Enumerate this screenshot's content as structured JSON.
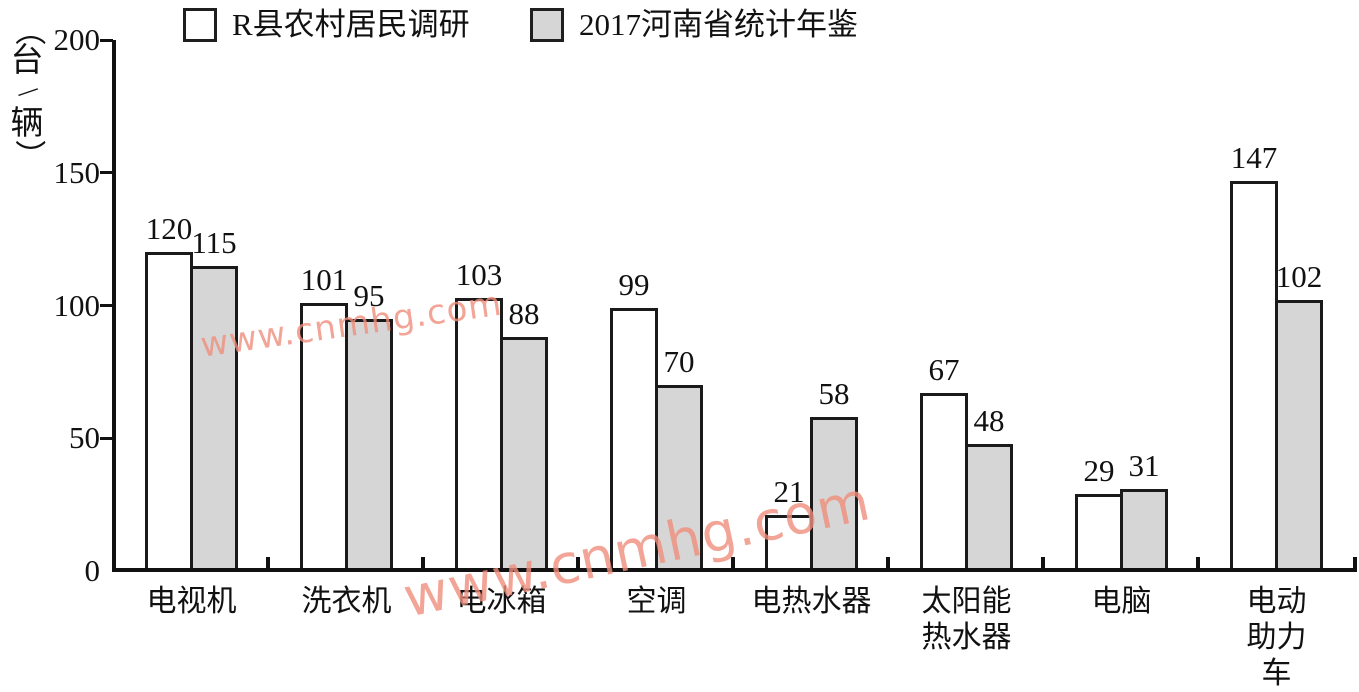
{
  "legend": {
    "items": [
      {
        "label": "R县农村居民调研",
        "swatch": "white"
      },
      {
        "label": "2017河南省统计年鉴",
        "swatch": "gray"
      }
    ]
  },
  "watermarks": [
    "www.cnmhg.com",
    "www.cnmhg.com"
  ],
  "colors": {
    "bar_white": "#ffffff",
    "bar_gray": "#d6d6d6",
    "bar_border": "#1a1a1a",
    "axis": "#111111",
    "watermark": "#ef8e7c"
  },
  "chart_data": {
    "type": "bar",
    "title": "",
    "xlabel": "",
    "ylabel": "（台/辆）",
    "ylabel_parts": [
      "（",
      "台",
      "/",
      "辆",
      "）"
    ],
    "ylim": [
      0,
      200
    ],
    "yticks": [
      0,
      50,
      100,
      150,
      200
    ],
    "grid": false,
    "legend_position": "top",
    "categories": [
      "电视机",
      "洗衣机",
      "电冰箱",
      "空调",
      "电热水器",
      "太阳能\n热水器",
      "电脑",
      "电动\n助力车"
    ],
    "series": [
      {
        "name": "R县农村居民调研",
        "fill": "white",
        "values": [
          120,
          101,
          103,
          99,
          21,
          67,
          29,
          147
        ]
      },
      {
        "name": "2017河南省统计年鉴",
        "fill": "gray",
        "values": [
          115,
          95,
          88,
          70,
          58,
          48,
          31,
          102
        ]
      }
    ]
  }
}
